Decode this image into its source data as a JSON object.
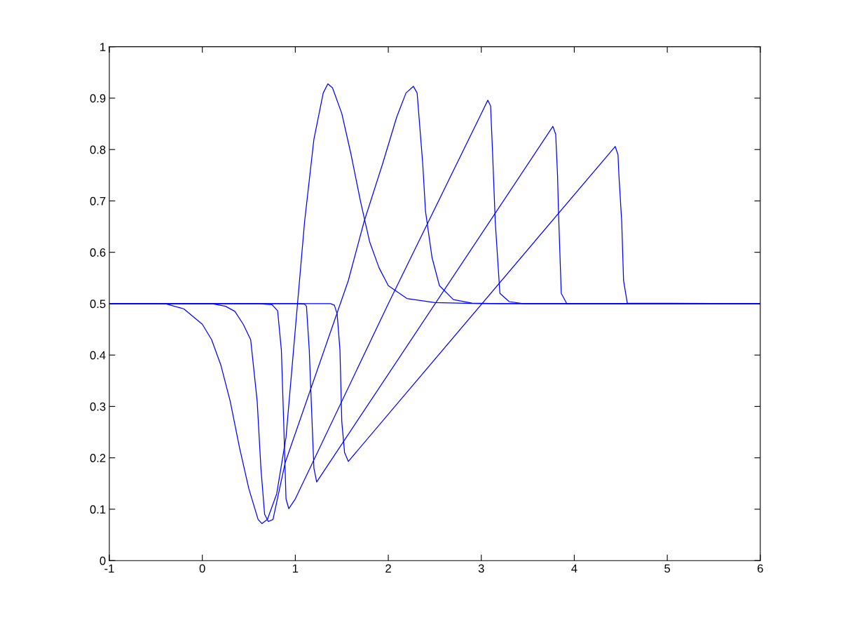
{
  "chart_data": {
    "type": "line",
    "xlim": [
      -1,
      6
    ],
    "xticks": [
      -1,
      0,
      1,
      2,
      3,
      4,
      5,
      6
    ],
    "ylim": [
      0,
      1
    ],
    "yticks": [
      0,
      0.1,
      0.2,
      0.3,
      0.4,
      0.5,
      0.6,
      0.7,
      0.8,
      0.9,
      1
    ],
    "series": [
      {
        "color": "#0000ff",
        "x": [
          -1,
          -0.4,
          -0.2,
          0,
          0.1,
          0.2,
          0.3,
          0.4,
          0.5,
          0.6,
          0.64,
          0.7,
          0.8,
          0.9,
          1.0,
          1.1,
          1.2,
          1.3,
          1.35,
          1.4,
          1.5,
          1.6,
          1.7,
          1.8,
          1.9,
          2.0,
          2.2,
          2.5,
          3,
          6
        ],
        "values": [
          0.5,
          0.5,
          0.49,
          0.46,
          0.43,
          0.38,
          0.31,
          0.22,
          0.14,
          0.08,
          0.072,
          0.08,
          0.13,
          0.24,
          0.45,
          0.66,
          0.82,
          0.91,
          0.928,
          0.92,
          0.87,
          0.79,
          0.7,
          0.62,
          0.57,
          0.535,
          0.51,
          0.502,
          0.5,
          0.5
        ]
      },
      {
        "color": "#0000ff",
        "x": [
          -1,
          0.1,
          0.25,
          0.35,
          0.44,
          0.52,
          0.59,
          0.63,
          0.67,
          0.71,
          0.76,
          0.89,
          1.57,
          1.74,
          1.94,
          2.09,
          2.19,
          2.27,
          2.31,
          2.37,
          2.4,
          2.47,
          2.55,
          2.7,
          2.9,
          3.2,
          6
        ],
        "values": [
          0.5,
          0.5,
          0.495,
          0.485,
          0.46,
          0.43,
          0.31,
          0.18,
          0.09,
          0.076,
          0.08,
          0.19,
          0.545,
          0.66,
          0.773,
          0.863,
          0.91,
          0.923,
          0.91,
          0.773,
          0.68,
          0.59,
          0.535,
          0.508,
          0.501,
          0.5,
          0.5
        ]
      },
      {
        "color": "#0000ff",
        "x": [
          -1,
          0.6,
          0.75,
          0.81,
          0.85,
          0.875,
          0.9,
          0.93,
          1.0,
          2.0,
          3.0,
          3.07,
          3.1,
          3.12,
          3.15,
          3.2,
          3.3,
          3.45,
          6
        ],
        "values": [
          0.5,
          0.5,
          0.498,
          0.486,
          0.41,
          0.27,
          0.12,
          0.101,
          0.12,
          0.5,
          0.87,
          0.896,
          0.885,
          0.8,
          0.66,
          0.52,
          0.504,
          0.5,
          0.5
        ]
      },
      {
        "color": "#0000ff",
        "x": [
          -1,
          1.0,
          1.1,
          1.12,
          1.15,
          1.18,
          1.2,
          1.23,
          3.77,
          3.8,
          3.82,
          3.83,
          3.86,
          3.92,
          6
        ],
        "values": [
          0.5,
          0.5,
          0.499,
          0.495,
          0.41,
          0.27,
          0.18,
          0.153,
          0.845,
          0.83,
          0.75,
          0.68,
          0.52,
          0.5,
          0.5
        ]
      },
      {
        "color": "#0000ff",
        "x": [
          -1,
          1.38,
          1.42,
          1.45,
          1.48,
          1.5,
          1.53,
          1.57,
          4.44,
          4.47,
          4.48,
          4.51,
          4.53,
          4.57,
          6
        ],
        "values": [
          0.5,
          0.5,
          0.497,
          0.48,
          0.41,
          0.27,
          0.21,
          0.193,
          0.806,
          0.79,
          0.75,
          0.66,
          0.545,
          0.501,
          0.5
        ]
      }
    ]
  }
}
